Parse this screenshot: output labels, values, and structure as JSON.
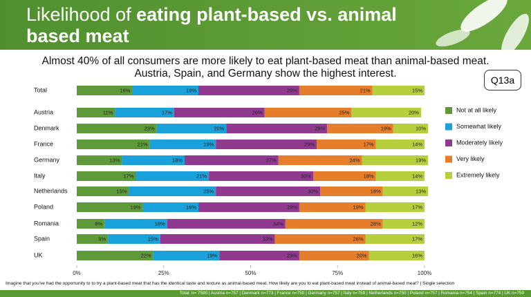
{
  "chart_data": {
    "type": "stacked-bar-horizontal",
    "title_prefix": "Likelihood of",
    "title_emphasis": "eating plant-based vs. animal based meat",
    "subtitle_lines": [
      "Almost 40% of all consumers are more likely to eat plant-based meat than animal-based meat.",
      "Austria, Spain, and Germany show the highest interest."
    ],
    "badge": "Q13a",
    "categories": [
      "Total",
      "Austria",
      "Denmark",
      "France",
      "Germany",
      "Italy",
      "Netherlands",
      "Poland",
      "Romania",
      "Spain",
      "UK"
    ],
    "series": [
      {
        "name": "Not at all likely",
        "color": "#5e9a3a",
        "values": [
          16,
          11,
          23,
          21,
          13,
          17,
          15,
          19,
          8,
          9,
          22
        ],
        "value_labels": [
          "16%",
          "11%",
          "23%",
          "21%",
          "13%",
          "17%",
          "15%",
          "19%",
          "8%",
          "9%",
          "22%"
        ]
      },
      {
        "name": "Somewhat likely",
        "color": "#1ba1d9",
        "values": [
          19,
          17,
          20,
          19,
          18,
          21,
          25,
          16,
          18,
          15,
          19
        ],
        "value_labels": [
          "19%",
          "17%",
          "20%",
          "19%",
          "18%",
          "21%",
          "25%",
          "16%",
          "18%",
          "15%",
          "19%"
        ]
      },
      {
        "name": "Moderately likely",
        "color": "#8f3a8e",
        "values": [
          29,
          26,
          29,
          29,
          27,
          30,
          30,
          29,
          34,
          33,
          23
        ],
        "value_labels": [
          "29%",
          "26%",
          "29%",
          "29%",
          "27%",
          "30%",
          "30%",
          "29%",
          "34%",
          "33%",
          "23%"
        ]
      },
      {
        "name": "Very likely",
        "color": "#e67d2a",
        "values": [
          21,
          25,
          19,
          17,
          24,
          18,
          18,
          19,
          28,
          26,
          20
        ],
        "value_labels": [
          "21%",
          "25%",
          "19%",
          "17%",
          "24%",
          "18%",
          "18%",
          "19%",
          "28%",
          "26%",
          "20%"
        ]
      },
      {
        "name": "Extremely likely",
        "color": "#b6cf3d",
        "values": [
          15,
          20,
          10,
          14,
          19,
          14,
          13,
          17,
          12,
          17,
          16
        ],
        "value_labels": [
          "15%",
          "20%",
          "10%",
          "14%",
          "19%",
          "14%",
          "13%",
          "17%",
          "12%",
          "17%",
          "16%"
        ]
      }
    ],
    "xlim": [
      0,
      100
    ],
    "xticks": [
      {
        "value": 0,
        "label": "0%"
      },
      {
        "value": 25,
        "label": "25%"
      },
      {
        "value": 50,
        "label": "50%"
      },
      {
        "value": 75,
        "label": "75%"
      },
      {
        "value": 100,
        "label": "100%"
      }
    ],
    "legend": "right",
    "footnote": "Imagine that you've had the opportunity to to try a plant-based meat that has the identical taste and texture as animal-based meat. How likely are you to eat plant-based meat instead of animal-based meat? | Single selection",
    "sample_sizes": "Total: n= 7590 | Austria n=757 | Denmark n=773 | France n=750 |  Germany n=757 | Italy n=759 | Netherlands n=750 | Poland n=757 | Romania n=754 | Spain n=774 | UK n=759"
  }
}
